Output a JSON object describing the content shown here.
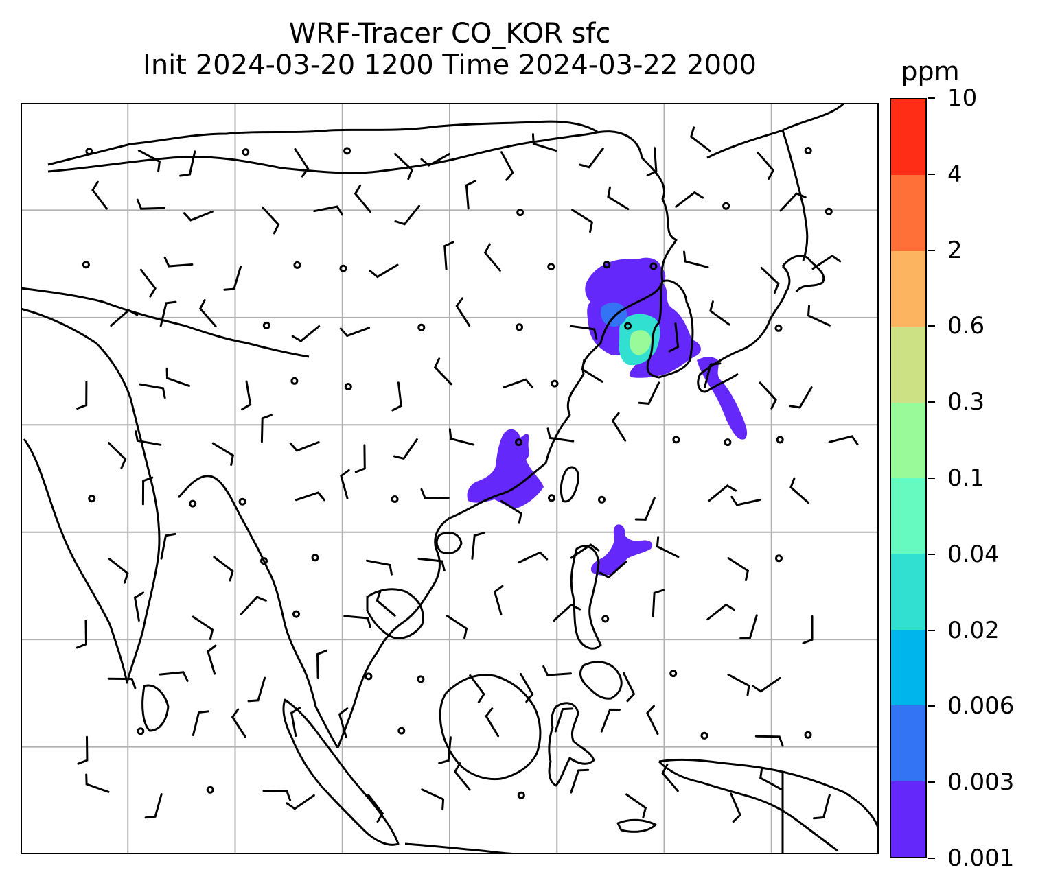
{
  "title": {
    "line1": "WRF-Tracer CO_KOR sfc",
    "line2": "Init 2024-03-20 1200 Time 2024-03-22 2000"
  },
  "colorbar": {
    "unit": "ppm",
    "levels": [
      "0.001",
      "0.003",
      "0.006",
      "0.02",
      "0.04",
      "0.1",
      "0.3",
      "0.6",
      "2",
      "4",
      "10"
    ],
    "colors": [
      "#6428fa",
      "#3274f4",
      "#00b4ec",
      "#32e0d2",
      "#66fac0",
      "#98fa98",
      "#cce084",
      "#fcb460",
      "#ff7038",
      "#ff2c16"
    ]
  },
  "map": {
    "projection": "lon-lat",
    "lon_range": [
      65,
      145
    ],
    "lat_range": [
      -15,
      55
    ],
    "gridlines": true,
    "coastline_color": "#000000",
    "grid_color": "#b0b0b0",
    "tracer_color": "#6428fa",
    "tracer_core_color": "#32e0d2",
    "tracer_peak_color": "#98fa98"
  }
}
